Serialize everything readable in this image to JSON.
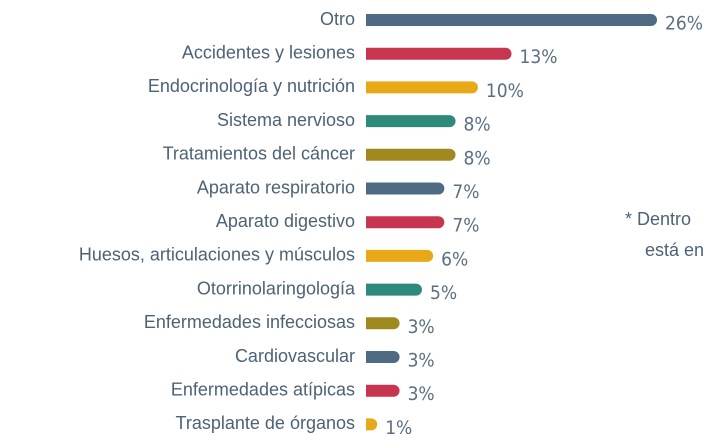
{
  "chart_data": {
    "type": "bar",
    "orientation": "horizontal",
    "categories": [
      "Otro",
      "Accidentes y lesiones",
      "Endocrinología y nutrición",
      "Sistema nervioso",
      "Tratamientos del cáncer",
      "Aparato respiratorio",
      "Aparato digestivo",
      "Huesos, articulaciones y músculos",
      "Otorrinolaringología",
      "Enfermedades infecciosas",
      "Cardiovascular",
      "Enfermedades atípicas",
      "Trasplante de órganos"
    ],
    "values": [
      26,
      13,
      10,
      8,
      8,
      7,
      7,
      6,
      5,
      3,
      3,
      3,
      1
    ],
    "value_labels": [
      "26%",
      "13%",
      "10%",
      "8%",
      "8%",
      "7%",
      "7%",
      "6%",
      "5%",
      "3%",
      "3%",
      "3%",
      "1%"
    ],
    "colors": [
      "#4f6a83",
      "#c8354f",
      "#e9a817",
      "#2e8a7b",
      "#a08a1f",
      "#4f6a83",
      "#c8354f",
      "#e9a817",
      "#2e8a7b",
      "#a08a1f",
      "#4f6a83",
      "#c8354f",
      "#e9a817"
    ],
    "annotation": [
      "* Dentro",
      "está en"
    ]
  }
}
